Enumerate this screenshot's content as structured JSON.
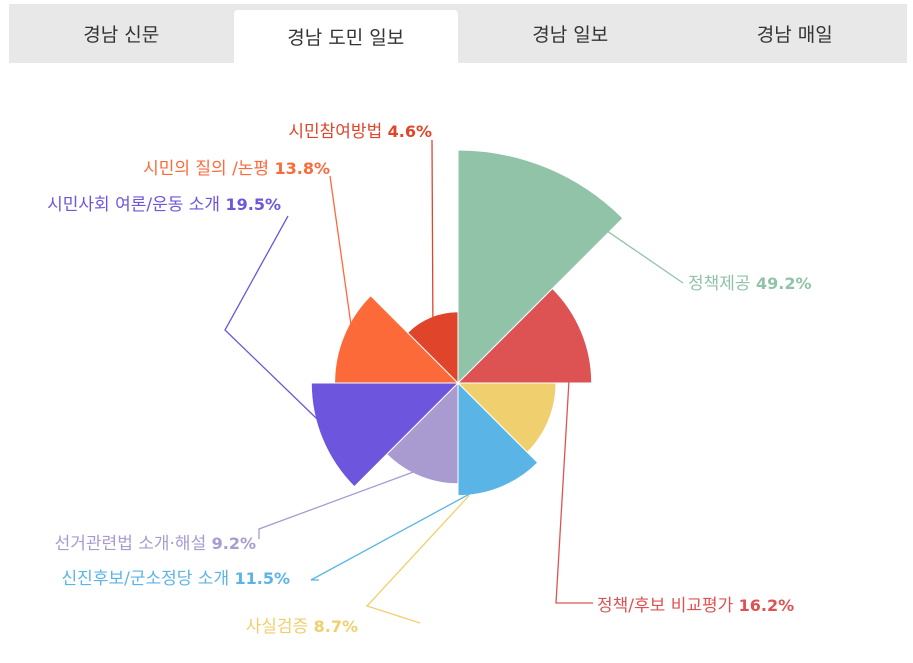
{
  "tabs": [
    {
      "label": "경남 신문",
      "active": false
    },
    {
      "label": "경남 도민 일보",
      "active": true
    },
    {
      "label": "경남 일보",
      "active": false
    },
    {
      "label": "경남 매일",
      "active": false
    }
  ],
  "chart_data": {
    "type": "pie",
    "variant": "polar-area (nightingale rose)",
    "title": "",
    "slices": [
      {
        "label": "정책제공",
        "percent": "49.2%",
        "value": 49.2,
        "color": "#90c3a8"
      },
      {
        "label": "정책/후보 비교평가",
        "percent": "16.2%",
        "value": 16.2,
        "color": "#dd5353"
      },
      {
        "label": "사실검증",
        "percent": "8.7%",
        "value": 8.7,
        "color": "#f0cf6e"
      },
      {
        "label": "신진후보/군소정당 소개",
        "percent": "11.5%",
        "value": 11.5,
        "color": "#5ab5e6"
      },
      {
        "label": "선거관련법 소개·해설",
        "percent": "9.2%",
        "value": 9.2,
        "color": "#a99bd0"
      },
      {
        "label": "시민사회 여론/운동 소개",
        "percent": "19.5%",
        "value": 19.5,
        "color": "#6e55dd"
      },
      {
        "label": "시민의 질의 /논평",
        "percent": "13.8%",
        "value": 13.8,
        "color": "#fd6a3a"
      },
      {
        "label": "시민참여방법",
        "percent": "4.6%",
        "value": 4.6,
        "color": "#e0452b"
      }
    ]
  }
}
